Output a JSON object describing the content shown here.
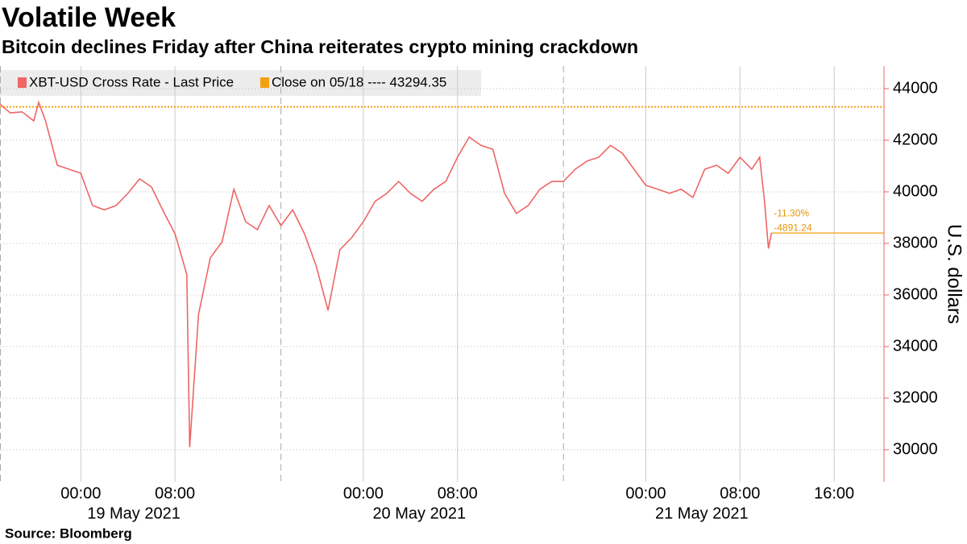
{
  "chart_data": {
    "type": "line",
    "title": "Volatile Week",
    "subtitle": "Bitcoin declines Friday after China reiterates crypto mining crackdown",
    "source": "Source: Bloomberg",
    "y_axis_label": "U.S. dollars",
    "x": [
      "2021-05-18T17:08",
      "2021-05-18T18:00",
      "2021-05-18T19:00",
      "2021-05-18T20:00",
      "2021-05-18T20:25",
      "2021-05-18T21:00",
      "2021-05-18T22:00",
      "2021-05-18T23:00",
      "2021-05-19T00:00",
      "2021-05-19T01:00",
      "2021-05-19T02:00",
      "2021-05-19T03:00",
      "2021-05-19T04:00",
      "2021-05-19T05:00",
      "2021-05-19T06:00",
      "2021-05-19T07:00",
      "2021-05-19T08:00",
      "2021-05-19T09:00",
      "2021-05-19T09:15",
      "2021-05-19T10:00",
      "2021-05-19T11:00",
      "2021-05-19T12:00",
      "2021-05-19T13:00",
      "2021-05-19T14:00",
      "2021-05-19T15:00",
      "2021-05-19T16:00",
      "2021-05-19T17:00",
      "2021-05-19T18:00",
      "2021-05-19T19:00",
      "2021-05-19T20:00",
      "2021-05-19T21:00",
      "2021-05-19T22:00",
      "2021-05-19T23:00",
      "2021-05-20T00:00",
      "2021-05-20T01:00",
      "2021-05-20T02:00",
      "2021-05-20T03:00",
      "2021-05-20T04:00",
      "2021-05-20T05:00",
      "2021-05-20T06:00",
      "2021-05-20T07:00",
      "2021-05-20T08:00",
      "2021-05-20T09:00",
      "2021-05-20T10:00",
      "2021-05-20T11:00",
      "2021-05-20T12:00",
      "2021-05-20T13:00",
      "2021-05-20T14:00",
      "2021-05-20T15:00",
      "2021-05-20T16:00",
      "2021-05-20T17:00",
      "2021-05-20T18:00",
      "2021-05-20T19:00",
      "2021-05-20T20:00",
      "2021-05-20T21:00",
      "2021-05-20T22:00",
      "2021-05-20T23:00",
      "2021-05-21T00:00",
      "2021-05-21T01:00",
      "2021-05-21T02:00",
      "2021-05-21T03:00",
      "2021-05-21T04:00",
      "2021-05-21T05:00",
      "2021-05-21T06:00",
      "2021-05-21T07:00",
      "2021-05-21T08:00",
      "2021-05-21T09:00",
      "2021-05-21T09:40",
      "2021-05-21T10:05",
      "2021-05-21T10:25",
      "2021-05-21T10:40"
    ],
    "series": [
      {
        "name": "XBT-USD Cross Rate - Last Price",
        "color": "#ee6666",
        "values": [
          43400,
          43060,
          43100,
          42750,
          43470,
          42750,
          41030,
          40875,
          40720,
          39470,
          39300,
          39470,
          39940,
          40500,
          40190,
          39250,
          38375,
          36800,
          30100,
          35250,
          37440,
          38060,
          40100,
          38840,
          38530,
          39470,
          38690,
          39300,
          38375,
          37125,
          35400,
          37750,
          38220,
          38840,
          39630,
          39940,
          40400,
          39940,
          39630,
          40100,
          40400,
          41340,
          42125,
          41800,
          41650,
          39940,
          39160,
          39470,
          40100,
          40400,
          40400,
          40875,
          41190,
          41340,
          41800,
          41500,
          40875,
          40250,
          40100,
          39940,
          40100,
          39780,
          40875,
          41030,
          40720,
          41340,
          40875,
          41340,
          39630,
          37800,
          38403.11
        ]
      }
    ],
    "reference_line": {
      "label": "Close on 05/18 ---- 43294.35",
      "value": 43294.35,
      "color": "#f5a00f"
    },
    "annotations": [
      "-11.30%",
      "-4891.24"
    ],
    "xlim": [
      "2021-05-18T17:08",
      "2021-05-21T20:14"
    ],
    "xticks": [
      {
        "value": "2021-05-19T00:00",
        "label": "00:00"
      },
      {
        "value": "2021-05-19T08:00",
        "label": "08:00"
      },
      {
        "value": "2021-05-20T00:00",
        "label": "00:00"
      },
      {
        "value": "2021-05-20T08:00",
        "label": "08:00"
      },
      {
        "value": "2021-05-21T00:00",
        "label": "00:00"
      },
      {
        "value": "2021-05-21T08:00",
        "label": "08:00"
      },
      {
        "value": "2021-05-21T16:00",
        "label": "16:00"
      }
    ],
    "date_labels": [
      {
        "value": "2021-05-19T04:30",
        "label": "19 May 2021"
      },
      {
        "value": "2021-05-20T04:45",
        "label": "20 May 2021"
      },
      {
        "value": "2021-05-21T04:45",
        "label": "21 May 2021"
      }
    ],
    "session_lines": [
      "2021-05-18T17:08",
      "2021-05-19T17:00",
      "2021-05-20T17:00"
    ],
    "ylim": [
      28750,
      44875
    ],
    "yticks": [
      30000,
      32000,
      34000,
      36000,
      38000,
      40000,
      42000,
      44000
    ],
    "grid": true
  }
}
